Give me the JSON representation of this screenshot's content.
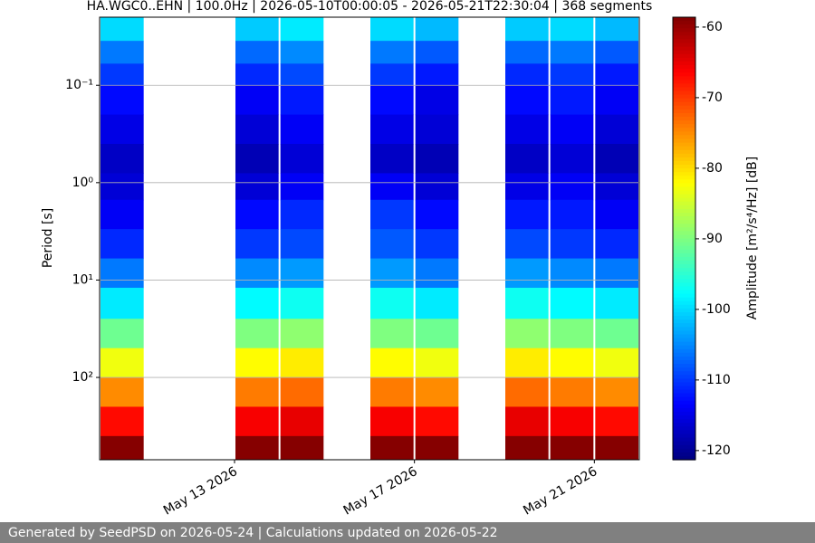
{
  "chart_data": {
    "type": "spectrogram",
    "title": "HA.WGC0..EHN | 100.0Hz | 2026-05-10T00:00:05 - 2026-05-21T22:30:04 | 368 segments",
    "y_label": "Period [s]",
    "colorbar_label": "Amplitude [m²/s⁴/Hz] [dB]",
    "footer": "Generated by SeedPSD on 2026-05-24 | Calculations updated on 2026-05-22",
    "x": [
      "2026-05-10",
      "2026-05-11",
      "2026-05-12",
      "2026-05-13",
      "2026-05-14",
      "2026-05-15",
      "2026-05-16",
      "2026-05-17",
      "2026-05-18",
      "2026-05-19",
      "2026-05-20",
      "2026-05-21"
    ],
    "xlim": [
      "2026-05-10",
      "2026-05-22"
    ],
    "xticks": [
      {
        "value": "2026-05-13",
        "label": "May 13 2026"
      },
      {
        "value": "2026-05-17",
        "label": "May 17 2026"
      },
      {
        "value": "2026-05-21",
        "label": "May 21 2026"
      }
    ],
    "y_log": true,
    "y_inverted": true,
    "ylim": [
      0.02,
      700
    ],
    "yticks": [
      {
        "value": 0.1,
        "label": "10⁻¹"
      },
      {
        "value": 1,
        "label": "10⁰"
      },
      {
        "value": 10,
        "label": "10¹"
      },
      {
        "value": 100,
        "label": "10²"
      }
    ],
    "grid": true,
    "period_bins": [
      0.02,
      0.035,
      0.06,
      0.1,
      0.2,
      0.4,
      0.8,
      1.5,
      3,
      6,
      12,
      25,
      50,
      100,
      200,
      400,
      700
    ],
    "z": [
      [
        -100,
        null,
        null,
        -101,
        -99,
        null,
        -100,
        -102,
        null,
        -101,
        -100,
        -102
      ],
      [
        -106,
        null,
        null,
        -107,
        -105,
        null,
        -106,
        -108,
        null,
        -107,
        -106,
        -108
      ],
      [
        -110,
        null,
        null,
        -111,
        -109,
        null,
        -110,
        -112,
        null,
        -111,
        -110,
        -112
      ],
      [
        -113,
        null,
        null,
        -114,
        -112,
        null,
        -113,
        -115,
        null,
        -113,
        -112,
        -114
      ],
      [
        -115,
        null,
        null,
        -116,
        -114,
        null,
        -115,
        -116,
        null,
        -115,
        -114,
        -116
      ],
      [
        -117,
        null,
        null,
        -118,
        -116,
        null,
        -117,
        -118,
        null,
        -117,
        -116,
        -118
      ],
      [
        -116,
        null,
        null,
        -116,
        -114,
        null,
        -114,
        -116,
        null,
        -115,
        -114,
        -116
      ],
      [
        -114,
        null,
        null,
        -113,
        -111,
        null,
        -110,
        -113,
        null,
        -112,
        -112,
        -114
      ],
      [
        -111,
        null,
        null,
        -110,
        -109,
        null,
        -108,
        -110,
        null,
        -109,
        -110,
        -111
      ],
      [
        -106,
        null,
        null,
        -105,
        -104,
        null,
        -104,
        -106,
        null,
        -104,
        -105,
        -106
      ],
      [
        -99,
        null,
        null,
        -98,
        -97,
        null,
        -97,
        -99,
        null,
        -97,
        -98,
        -99
      ],
      [
        -91,
        null,
        null,
        -90,
        -89,
        null,
        -90,
        -91,
        null,
        -89,
        -90,
        -91
      ],
      [
        -83,
        null,
        null,
        -82,
        -81,
        null,
        -82,
        -83,
        null,
        -81,
        -82,
        -83
      ],
      [
        -75,
        null,
        null,
        -74,
        -73,
        null,
        -74,
        -75,
        null,
        -73,
        -74,
        -75
      ],
      [
        -67,
        null,
        null,
        -66,
        -65,
        null,
        -66,
        -67,
        null,
        -65,
        -66,
        -67
      ],
      [
        -59,
        null,
        null,
        -59,
        -59,
        null,
        -59,
        -59,
        null,
        -59,
        -59,
        -59
      ]
    ],
    "colormap": "jet",
    "clim": [
      -121.3,
      -58.6
    ],
    "cticks": [
      -60,
      -70,
      -80,
      -90,
      -100,
      -110,
      -120
    ]
  }
}
